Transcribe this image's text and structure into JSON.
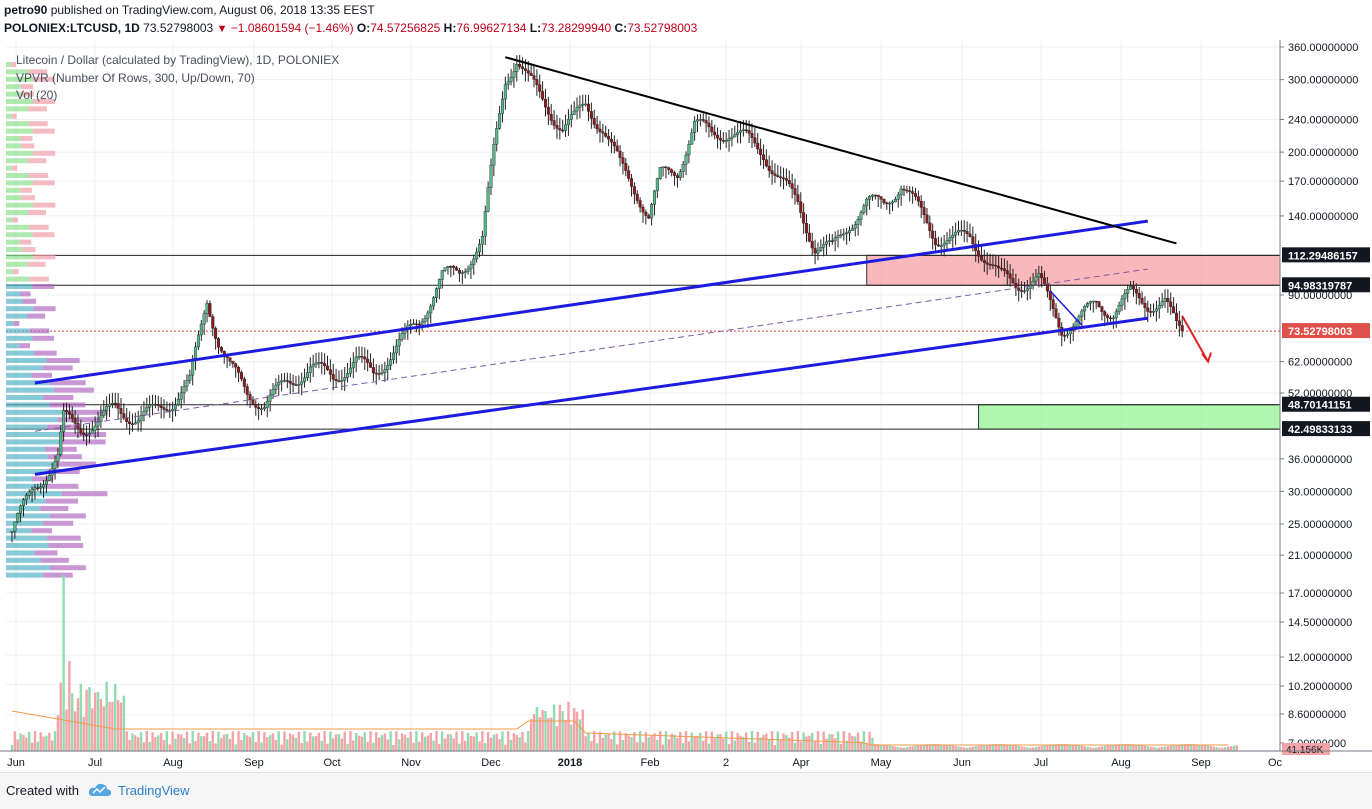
{
  "header": {
    "publisher": "petro90",
    "published_text": "published on TradingView.com, August 06, 2018 13:35 EEST",
    "symbol": "POLONIEX:LTCUSD, 1D",
    "last": "73.52798003",
    "change": "−1.08601594 (−1.46%)",
    "open_label": "O:",
    "open": "74.57256825",
    "high_label": "H:",
    "high": "76.99627134",
    "low_label": "L:",
    "low": "73.28299940",
    "close_label": "C:",
    "close": "73.52798003"
  },
  "legend": {
    "title": "Litecoin / Dollar (calculated by TradingView), 1D, POLONIEX",
    "vpvr": "VPVR (Number Of Rows, 300, Up/Down, 70)",
    "vol": "Vol (20)"
  },
  "footer": {
    "created_with": "Created with",
    "brand": "TradingView"
  },
  "chart_data": {
    "type": "candlestick",
    "symbol": "LTCUSD",
    "scale": "log",
    "y_ticks": [
      "360.00000000",
      "300.00000000",
      "240.00000000",
      "200.00000000",
      "170.00000000",
      "140.00000000",
      "90.00000000",
      "62.00000000",
      "52.00000000",
      "36.00000000",
      "30.00000000",
      "25.00000000",
      "21.00000000",
      "17.00000000",
      "14.50000000",
      "12.00000000",
      "10.20000000",
      "8.60000000",
      "7.00000000"
    ],
    "y_tick_values": [
      360,
      300,
      240,
      200,
      170,
      140,
      90,
      62,
      52,
      36,
      30,
      25,
      21,
      17,
      14.5,
      12,
      10.2,
      8.6,
      7
    ],
    "x_ticks": [
      "Jun",
      "Jul",
      "Aug",
      "Sep",
      "Oct",
      "Nov",
      "Dec",
      "2018",
      "Feb",
      "2",
      "Apr",
      "May",
      "Jun",
      "Jul",
      "Aug",
      "Sep",
      "Oc"
    ],
    "price_labels": [
      {
        "text": "112.29486157",
        "value": 112.29486157,
        "style": "dark"
      },
      {
        "text": "94.98319787",
        "value": 94.98319787,
        "style": "dark"
      },
      {
        "text": "73.52798003",
        "value": 73.52798003,
        "style": "last"
      },
      {
        "text": "48.70141151",
        "value": 48.70141151,
        "style": "dark"
      },
      {
        "text": "42.49833133",
        "value": 42.49833133,
        "style": "dark"
      }
    ],
    "volume_label": "41.156K",
    "price_path": [
      [
        0,
        24
      ],
      [
        8,
        31
      ],
      [
        16,
        36
      ],
      [
        18,
        45
      ],
      [
        24,
        43
      ],
      [
        30,
        44
      ],
      [
        36,
        48
      ],
      [
        44,
        45
      ],
      [
        50,
        47
      ],
      [
        56,
        50
      ],
      [
        62,
        55
      ],
      [
        68,
        88
      ],
      [
        72,
        70
      ],
      [
        76,
        60
      ],
      [
        82,
        52
      ],
      [
        88,
        49
      ],
      [
        96,
        55
      ],
      [
        104,
        60
      ],
      [
        112,
        57
      ],
      [
        120,
        62
      ],
      [
        126,
        58
      ],
      [
        134,
        67
      ],
      [
        142,
        78
      ],
      [
        150,
        100
      ],
      [
        156,
        102
      ],
      [
        164,
        123
      ],
      [
        168,
        200
      ],
      [
        172,
        300
      ],
      [
        176,
        340
      ],
      [
        180,
        300
      ],
      [
        186,
        260
      ],
      [
        192,
        230
      ],
      [
        196,
        240
      ],
      [
        200,
        260
      ],
      [
        206,
        230
      ],
      [
        212,
        185
      ],
      [
        218,
        160
      ],
      [
        222,
        140
      ],
      [
        226,
        175
      ],
      [
        232,
        180
      ],
      [
        238,
        235
      ],
      [
        244,
        220
      ],
      [
        250,
        225
      ],
      [
        256,
        215
      ],
      [
        262,
        200
      ],
      [
        268,
        170
      ],
      [
        274,
        150
      ],
      [
        280,
        118
      ],
      [
        286,
        116
      ],
      [
        292,
        135
      ],
      [
        298,
        150
      ],
      [
        304,
        150
      ],
      [
        310,
        168
      ],
      [
        316,
        145
      ],
      [
        322,
        125
      ],
      [
        328,
        122
      ],
      [
        334,
        125
      ],
      [
        338,
        115
      ],
      [
        344,
        100
      ],
      [
        350,
        96
      ],
      [
        358,
        98
      ],
      [
        362,
        85
      ],
      [
        366,
        75
      ],
      [
        372,
        78
      ],
      [
        378,
        86
      ],
      [
        384,
        82
      ],
      [
        390,
        90
      ],
      [
        396,
        86
      ],
      [
        402,
        86
      ],
      [
        406,
        75
      ],
      [
        408,
        73.5
      ]
    ],
    "lines": [
      {
        "name": "upper-trend",
        "color": "#1c1ce0",
        "p1": [
          8,
          55
        ],
        "p2": [
          396,
          136
        ]
      },
      {
        "name": "lower-trend",
        "color": "#1c1ce0",
        "p1": [
          8,
          33
        ],
        "p2": [
          396,
          79
        ]
      },
      {
        "name": "descending-resistance",
        "color": "#000000",
        "p1": [
          172,
          340
        ],
        "p2": [
          406,
          120
        ]
      },
      {
        "name": "mid-channel",
        "color": "#7d5aa8",
        "p1": [
          8,
          42
        ],
        "p2": [
          396,
          104
        ]
      }
    ],
    "zones": [
      {
        "name": "resistance-zone",
        "color": "#f7a6ab",
        "low": 94.98319787,
        "high": 112.29486157,
        "from": 298
      },
      {
        "name": "support-zone",
        "color": "#9cf59c",
        "low": 42.49833133,
        "high": 48.70141151,
        "from": 337
      }
    ]
  }
}
